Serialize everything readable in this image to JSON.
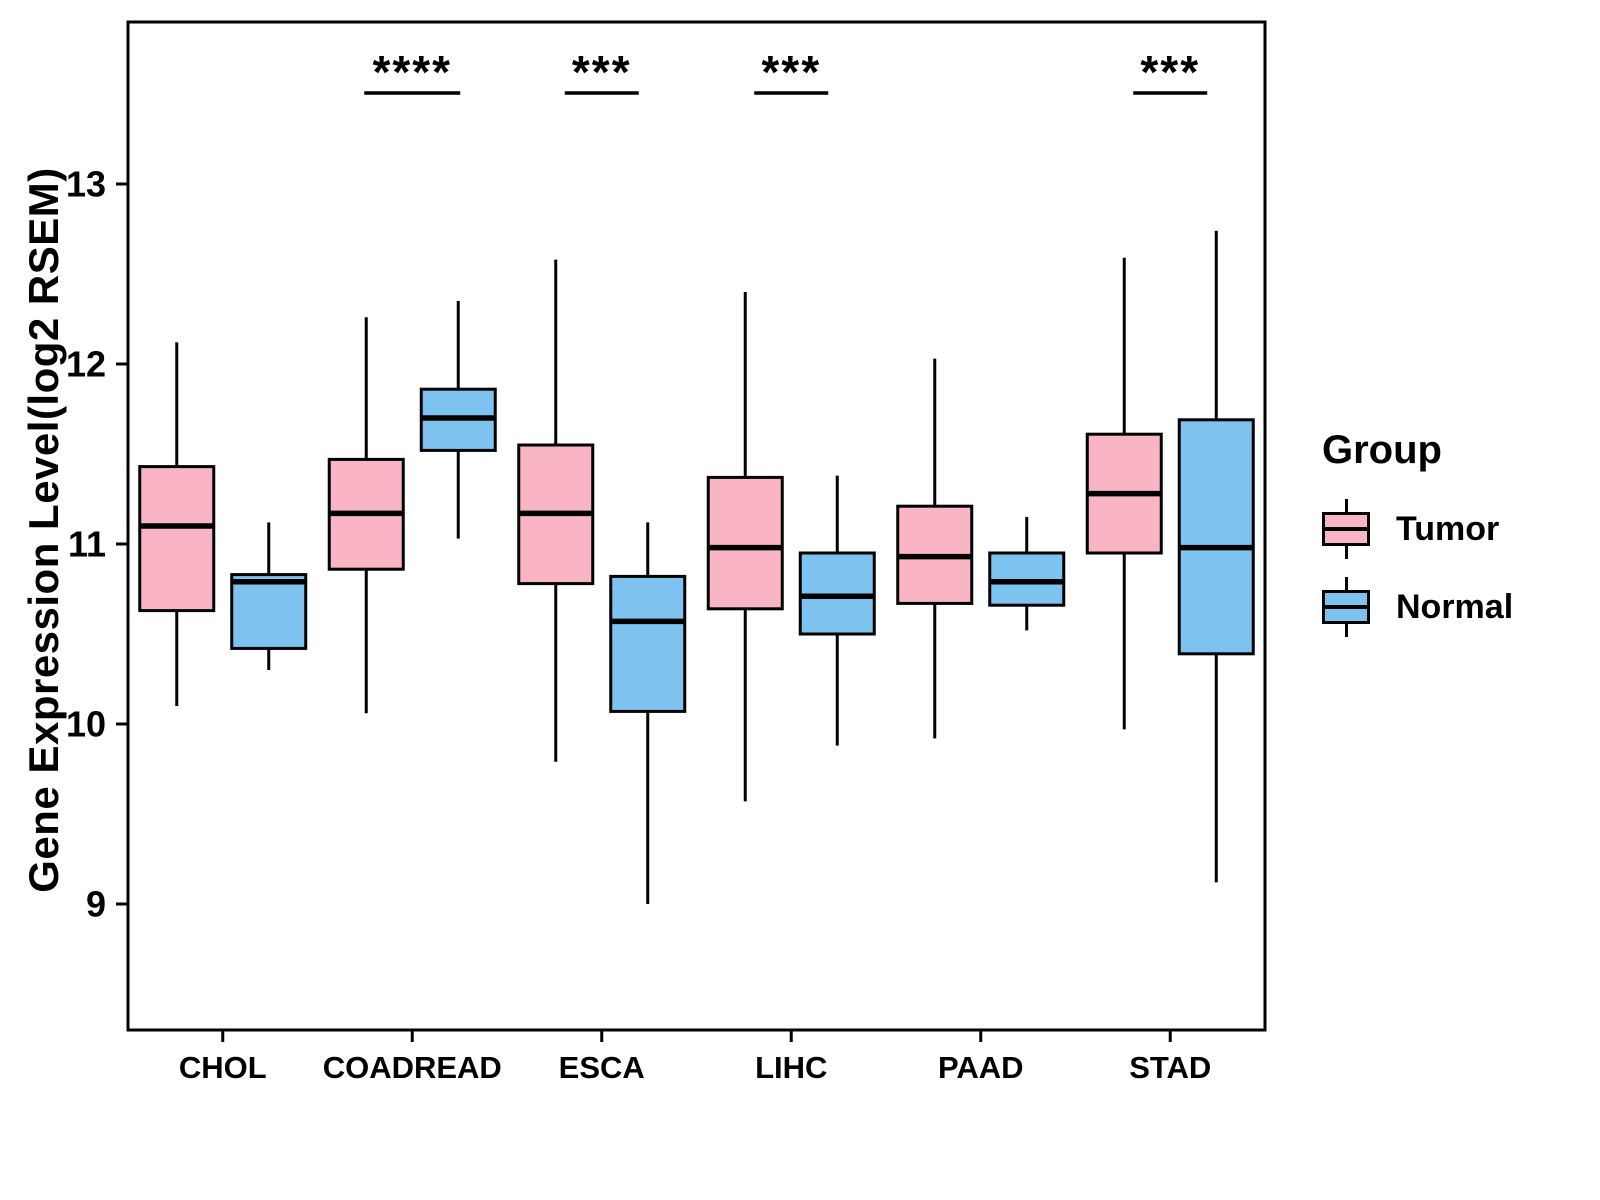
{
  "ylabel": "Gene Expression Level(log2 RSEM)",
  "legend": {
    "title": "Group",
    "items": [
      {
        "label": "Tumor",
        "color": "#F9B5C4"
      },
      {
        "label": "Normal",
        "color": "#7EC3F0"
      }
    ]
  },
  "chart_data": {
    "type": "grouped_boxplot",
    "title": "",
    "xlabel": "",
    "ylabel": "Gene Expression Level(log2 RSEM)",
    "categories": [
      "CHOL",
      "COADREAD",
      "ESCA",
      "LIHC",
      "PAAD",
      "STAD"
    ],
    "yticks": [
      9,
      10,
      11,
      12,
      13
    ],
    "ylim": [
      8.3,
      13.9
    ],
    "grid": false,
    "legend_position": "right",
    "series": [
      {
        "name": "Tumor",
        "color": "#F9B5C4",
        "boxes": [
          {
            "low": 10.1,
            "q1": 10.63,
            "median": 11.1,
            "q3": 11.43,
            "high": 12.12
          },
          {
            "low": 10.06,
            "q1": 10.86,
            "median": 11.17,
            "q3": 11.47,
            "high": 12.26
          },
          {
            "low": 9.79,
            "q1": 10.78,
            "median": 11.17,
            "q3": 11.55,
            "high": 12.58
          },
          {
            "low": 9.57,
            "q1": 10.64,
            "median": 10.98,
            "q3": 11.37,
            "high": 12.4
          },
          {
            "low": 9.92,
            "q1": 10.67,
            "median": 10.93,
            "q3": 11.21,
            "high": 12.03
          },
          {
            "low": 9.97,
            "q1": 10.95,
            "median": 11.28,
            "q3": 11.61,
            "high": 12.59
          }
        ]
      },
      {
        "name": "Normal",
        "color": "#7EC3F0",
        "boxes": [
          {
            "low": 10.3,
            "q1": 10.42,
            "median": 10.79,
            "q3": 10.83,
            "high": 11.12
          },
          {
            "low": 11.03,
            "q1": 11.52,
            "median": 11.7,
            "q3": 11.86,
            "high": 12.35
          },
          {
            "low": 9.0,
            "q1": 10.07,
            "median": 10.57,
            "q3": 10.82,
            "high": 11.12
          },
          {
            "low": 9.88,
            "q1": 10.5,
            "median": 10.71,
            "q3": 10.95,
            "high": 11.38
          },
          {
            "low": 10.52,
            "q1": 10.66,
            "median": 10.79,
            "q3": 10.95,
            "high": 11.15
          },
          {
            "low": 9.12,
            "q1": 10.39,
            "median": 10.98,
            "q3": 11.69,
            "high": 12.74
          }
        ]
      }
    ],
    "annotations": [
      {
        "category": "COADREAD",
        "label": "****"
      },
      {
        "category": "ESCA",
        "label": "***"
      },
      {
        "category": "LIHC",
        "label": "***"
      },
      {
        "category": "STAD",
        "label": "***"
      }
    ]
  }
}
